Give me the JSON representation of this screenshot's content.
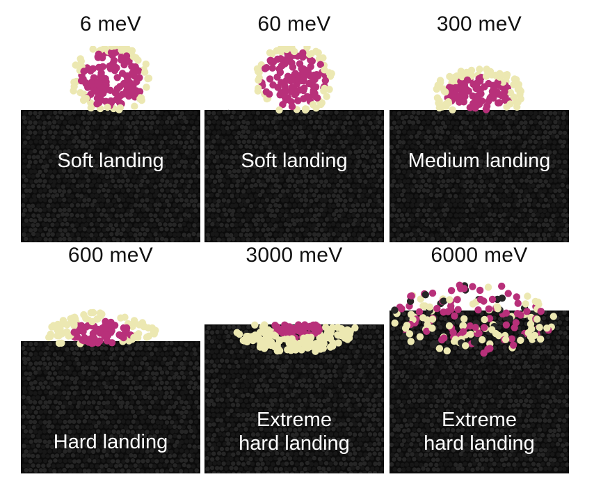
{
  "colors": {
    "substrate": "#0b0b0b",
    "substrate_highlight": "#262626",
    "cluster_core": "#b8307a",
    "cluster_shell": "#ece8b2",
    "caption_text": "#ffffff"
  },
  "panels": [
    {
      "energy": "6 meV",
      "caption_lines": [
        "Soft landing"
      ]
    },
    {
      "energy": "60 meV",
      "caption_lines": [
        "Soft landing"
      ]
    },
    {
      "energy": "300 meV",
      "caption_lines": [
        "Medium landing"
      ]
    },
    {
      "energy": "600 meV",
      "caption_lines": [
        "Hard landing"
      ]
    },
    {
      "energy": "3000 meV",
      "caption_lines": [
        "Extreme",
        "hard landing"
      ]
    },
    {
      "energy": "6000 meV",
      "caption_lines": [
        "Extreme",
        "hard landing"
      ]
    }
  ]
}
